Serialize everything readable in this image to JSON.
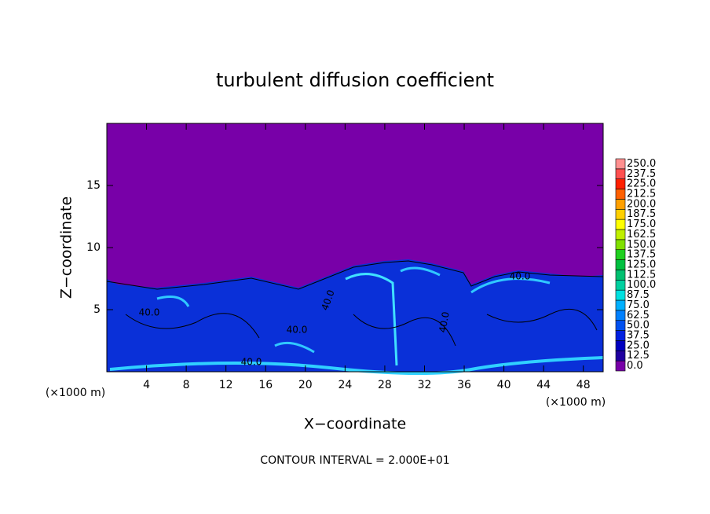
{
  "chart_data": {
    "type": "contour",
    "title": "turbulent diffusion coefficient",
    "x_label": "X−coordinate",
    "y_label": "Z−coordinate",
    "x_unit_left": "(×1000 m)",
    "x_unit_right": "(×1000 m)",
    "footer": "CONTOUR INTERVAL = 2.000E+01",
    "xlim": [
      0,
      50
    ],
    "ylim": [
      0,
      20
    ],
    "xticks": [
      4,
      8,
      12,
      16,
      20,
      24,
      28,
      32,
      36,
      40,
      44,
      48
    ],
    "yticks": [
      5,
      10,
      15
    ],
    "contour_labels": [
      "40.0",
      "40.0",
      "40.0",
      "40.0",
      "40.0",
      "40.0"
    ],
    "colorbar": [
      {
        "value": 0,
        "label": "0.0",
        "color": "#7800a8"
      },
      {
        "value": 12.5,
        "label": "12.5",
        "color": "#2000a0"
      },
      {
        "value": 25,
        "label": "25.0",
        "color": "#0000c0"
      },
      {
        "value": 37.5,
        "label": "37.5",
        "color": "#0020e0"
      },
      {
        "value": 50,
        "label": "50.0",
        "color": "#0050f0"
      },
      {
        "value": 62.5,
        "label": "62.5",
        "color": "#0080ff"
      },
      {
        "value": 75,
        "label": "75.0",
        "color": "#00b0ff"
      },
      {
        "value": 87.5,
        "label": "87.5",
        "color": "#00e0e0"
      },
      {
        "value": 100,
        "label": "100.0",
        "color": "#00d0a0"
      },
      {
        "value": 112.5,
        "label": "112.5",
        "color": "#00c070"
      },
      {
        "value": 125,
        "label": "125.0",
        "color": "#00c040"
      },
      {
        "value": 137.5,
        "label": "137.5",
        "color": "#20d020"
      },
      {
        "value": 150,
        "label": "150.0",
        "color": "#80e000"
      },
      {
        "value": 162.5,
        "label": "162.5",
        "color": "#c0f000"
      },
      {
        "value": 175,
        "label": "175.0",
        "color": "#ffff00"
      },
      {
        "value": 187.5,
        "label": "187.5",
        "color": "#ffd000"
      },
      {
        "value": 200,
        "label": "200.0",
        "color": "#ffa000"
      },
      {
        "value": 212.5,
        "label": "212.5",
        "color": "#ff6000"
      },
      {
        "value": 225,
        "label": "225.0",
        "color": "#ff2000"
      },
      {
        "value": 237.5,
        "label": "237.5",
        "color": "#ff5050"
      },
      {
        "value": 250,
        "label": "250.0",
        "color": "#ff9090"
      }
    ]
  }
}
